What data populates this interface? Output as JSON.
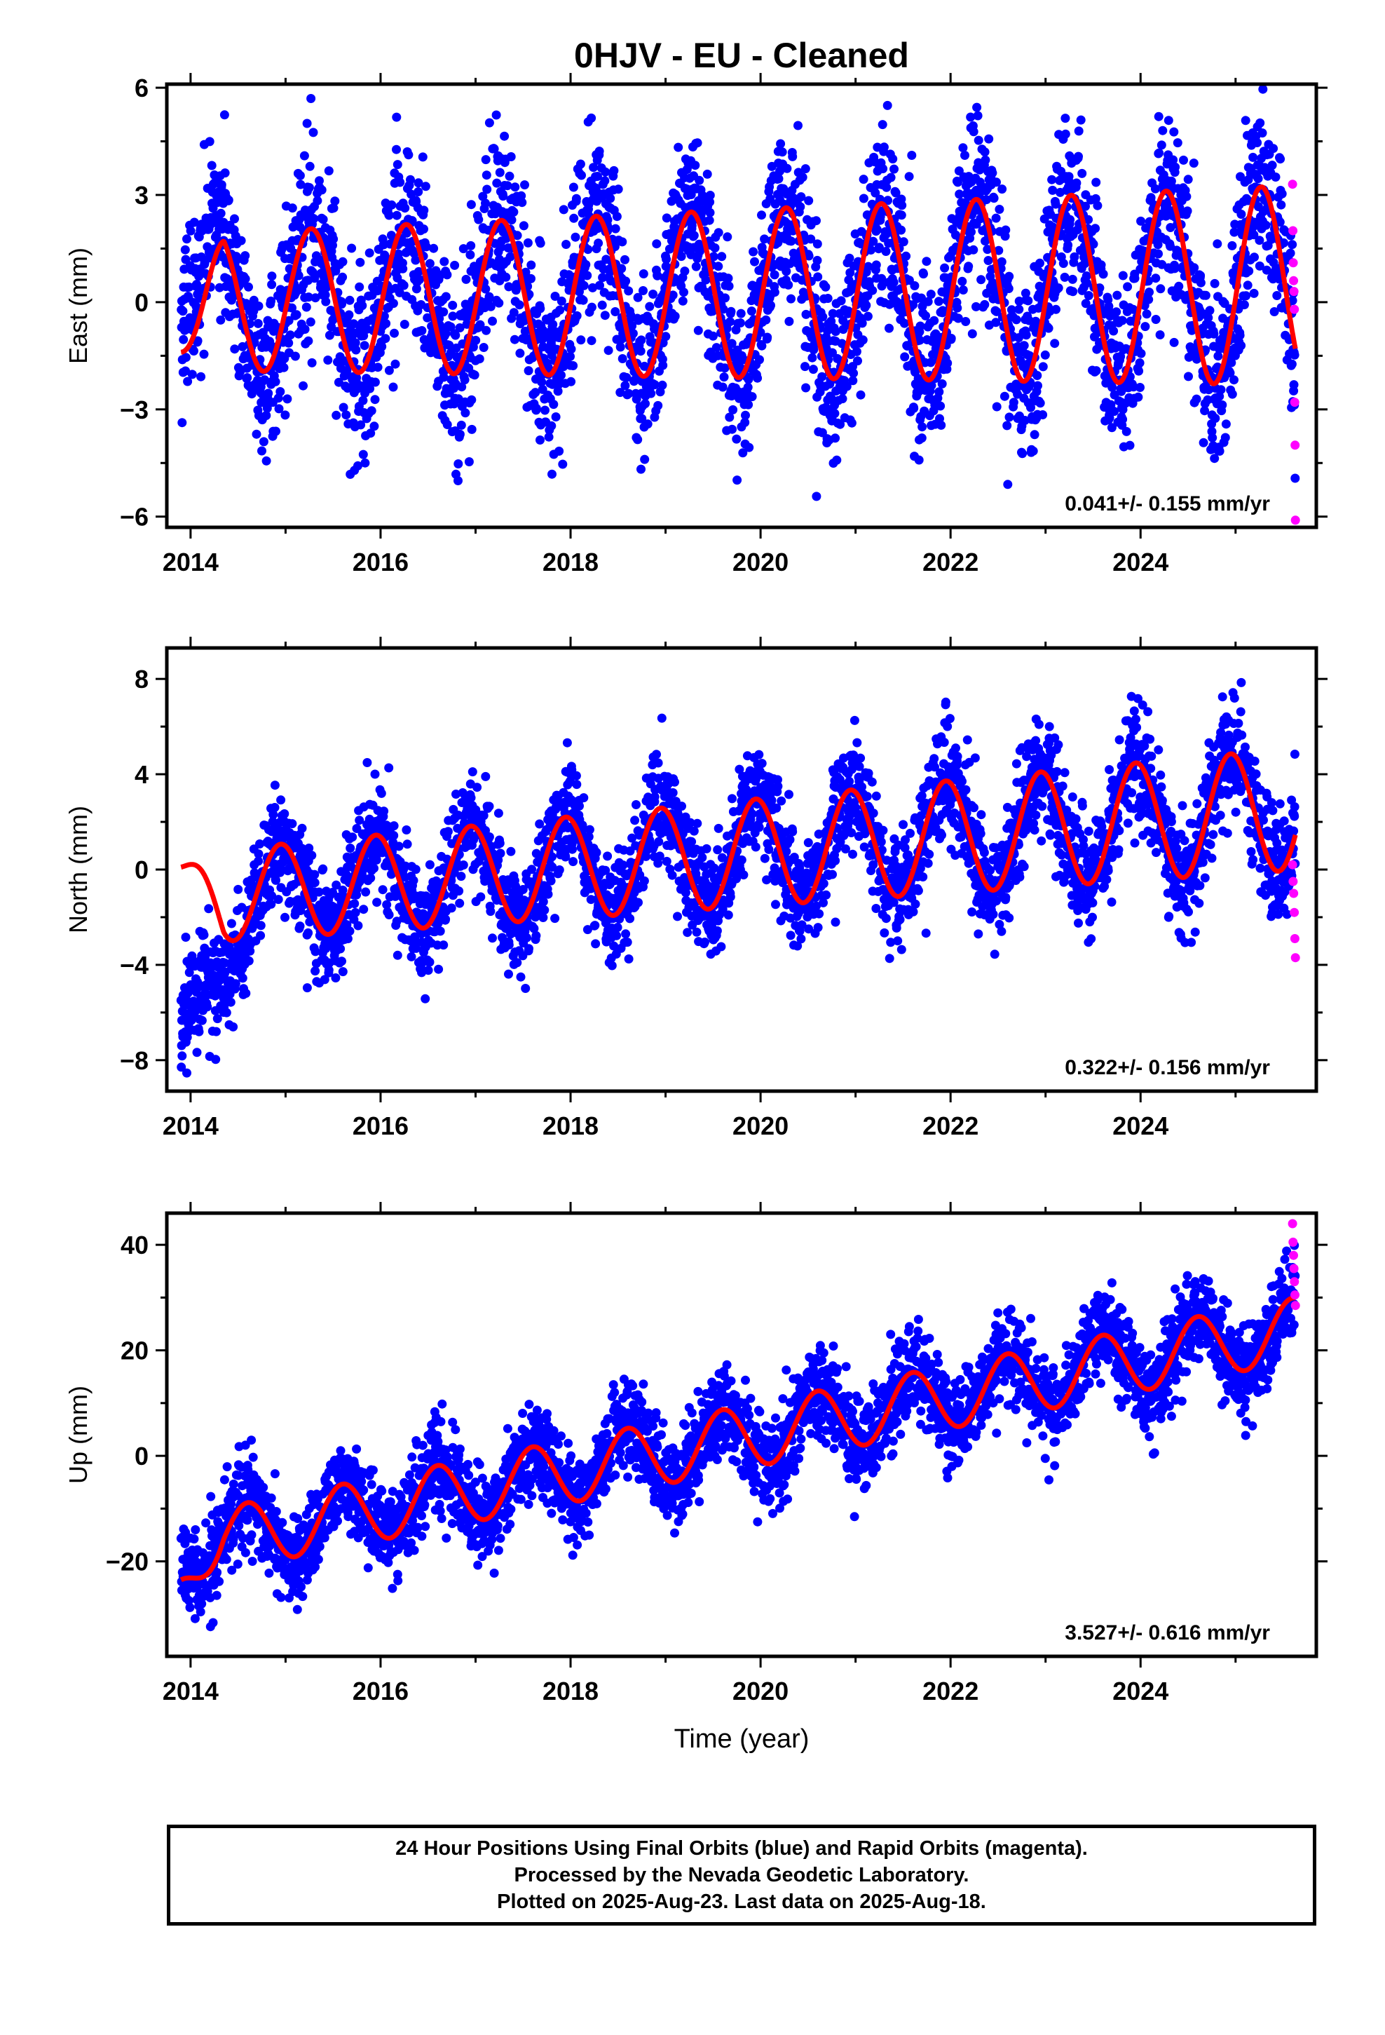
{
  "title": "0HJV  - EU - Cleaned",
  "footer": {
    "line1": "24 Hour Positions Using Final Orbits (blue) and Rapid Orbits (magenta).",
    "line2": "Processed by the Nevada Geodetic Laboratory.",
    "line3": "Plotted on 2025-Aug-23. Last data on 2025-Aug-18."
  },
  "colors": {
    "final": "#0000ff",
    "rapid": "#ff00ff",
    "model": "#ff0000",
    "axis": "#000000"
  },
  "chart_data": [
    {
      "type": "scatter",
      "ylabel": "East (mm)",
      "xlabel": "",
      "rate": "0.041+/- 0.155 mm/yr",
      "xlim": [
        2013.75,
        2025.85
      ],
      "ylim": [
        -6.3,
        6.1
      ],
      "xticks": [
        2014,
        2016,
        2018,
        2020,
        2022,
        2024
      ],
      "yticks": [
        -6,
        -3,
        0,
        3,
        6
      ],
      "ytick_labels": [
        "−6",
        "−3",
        "0",
        "3",
        "6"
      ],
      "data_range": [
        2013.9,
        2025.63
      ],
      "rapid_range": [
        2025.6,
        2025.63
      ],
      "model": {
        "offset": 0.0,
        "trend": 0.041,
        "start_value": -1.4,
        "amplitude": 1.9,
        "amplitude_growth": 0.04,
        "period_years": 1.0,
        "peak_phase_year": 0.27
      },
      "scatter_noise": 1.25,
      "rapid_values": [
        3.3,
        2.0,
        1.1,
        0.6,
        0.3,
        -0.2,
        -2.8,
        -4.0,
        -6.1
      ]
    },
    {
      "type": "scatter",
      "ylabel": "North (mm)",
      "xlabel": "",
      "rate": "0.322+/- 0.156 mm/yr",
      "xlim": [
        2013.75,
        2025.85
      ],
      "ylim": [
        -9.3,
        9.3
      ],
      "xticks": [
        2014,
        2016,
        2018,
        2020,
        2022,
        2024
      ],
      "yticks": [
        -8,
        -4,
        0,
        4,
        8
      ],
      "ytick_labels": [
        "−8",
        "−4",
        "0",
        "4",
        "8"
      ],
      "data_range": [
        2013.9,
        2025.63
      ],
      "rapid_range": [
        2025.6,
        2025.63
      ],
      "model": {
        "offset": -1.2,
        "trend": 0.322,
        "start_value": 0.1,
        "amplitude": 1.9,
        "amplitude_growth": 0.03,
        "period_years": 1.0,
        "peak_phase_year": 0.95
      },
      "scatter_noise": 1.15,
      "early_offset": {
        "until": 2014.7,
        "value": -6.5
      },
      "rapid_values": [
        0.2,
        -0.5,
        -1.0,
        -1.8,
        -2.9,
        -3.7
      ]
    },
    {
      "type": "scatter",
      "ylabel": "Up (mm)",
      "xlabel": "Time (year)",
      "rate": "3.527+/- 0.616 mm/yr",
      "xlim": [
        2013.75,
        2025.85
      ],
      "ylim": [
        -38,
        46
      ],
      "xticks": [
        2014,
        2016,
        2018,
        2020,
        2022,
        2024
      ],
      "yticks": [
        -20,
        0,
        20,
        40
      ],
      "ytick_labels": [
        "−20",
        "0",
        "20",
        "40"
      ],
      "data_range": [
        2013.9,
        2025.63
      ],
      "rapid_range": [
        2025.6,
        2025.63
      ],
      "model": {
        "offset": -17.0,
        "trend": 3.527,
        "start_value": -23.5,
        "amplitude": 6.0,
        "amplitude_growth": 0.0,
        "period_years": 1.0,
        "peak_phase_year": 0.6
      },
      "scatter_noise": 4.2,
      "rapid_values": [
        44,
        40.5,
        38,
        35.5,
        33,
        30.5,
        28.5
      ]
    }
  ]
}
